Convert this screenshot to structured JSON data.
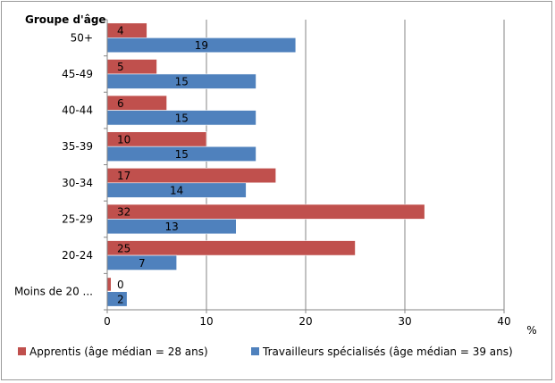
{
  "chart_data": {
    "type": "bar",
    "orientation": "horizontal",
    "ylabel": "Groupe d'âge",
    "xlabel": "%",
    "categories": [
      "50+",
      "45-49",
      "40-44",
      "35-39",
      "30-34",
      "25-29",
      "20-24",
      "Moins de 20 ..."
    ],
    "series": [
      {
        "name": "Apprentis (âge médian = 28 ans)",
        "color": "#c0504d",
        "values": [
          4,
          5,
          6,
          10,
          17,
          32,
          25,
          0
        ]
      },
      {
        "name": "Travailleurs spécialisés (âge médian = 39 ans)",
        "color": "#4f81bd",
        "values": [
          19,
          15,
          15,
          15,
          14,
          13,
          7,
          2
        ]
      }
    ],
    "xlim": [
      0,
      40
    ],
    "xticks": [
      0,
      10,
      20,
      30,
      40
    ],
    "grid": "vertical",
    "legend": "bottom"
  }
}
